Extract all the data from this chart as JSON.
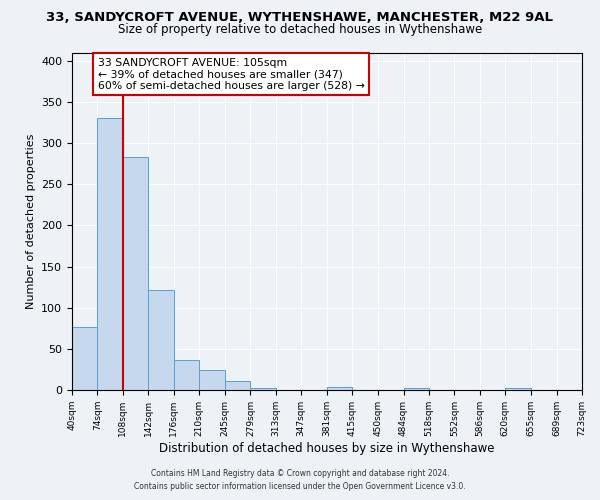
{
  "title": "33, SANDYCROFT AVENUE, WYTHENSHAWE, MANCHESTER, M22 9AL",
  "subtitle": "Size of property relative to detached houses in Wythenshawe",
  "xlabel": "Distribution of detached houses by size in Wythenshawe",
  "ylabel": "Number of detached properties",
  "bar_values": [
    77,
    330,
    283,
    122,
    37,
    24,
    11,
    3,
    0,
    0,
    4,
    0,
    0,
    2,
    0,
    0,
    0,
    3,
    0,
    0
  ],
  "bin_edges": [
    40,
    74,
    108,
    142,
    176,
    210,
    245,
    279,
    313,
    347,
    381,
    415,
    450,
    484,
    518,
    552,
    586,
    620,
    655,
    689,
    723
  ],
  "tick_labels": [
    "40sqm",
    "74sqm",
    "108sqm",
    "142sqm",
    "176sqm",
    "210sqm",
    "245sqm",
    "279sqm",
    "313sqm",
    "347sqm",
    "381sqm",
    "415sqm",
    "450sqm",
    "484sqm",
    "518sqm",
    "552sqm",
    "586sqm",
    "620sqm",
    "655sqm",
    "689sqm",
    "723sqm"
  ],
  "bar_color": "#c5d8ed",
  "bar_edge_color": "#5a9fd4",
  "vline_x": 108,
  "vline_color": "#cc0000",
  "ylim": [
    0,
    410
  ],
  "yticks": [
    0,
    50,
    100,
    150,
    200,
    250,
    300,
    350,
    400
  ],
  "annotation_line1": "33 SANDYCROFT AVENUE: 105sqm",
  "annotation_line2": "← 39% of detached houses are smaller (347)",
  "annotation_line3": "60% of semi-detached houses are larger (528) →",
  "annotation_box_color": "#ffffff",
  "annotation_box_edge_color": "#cc0000",
  "footer_line1": "Contains HM Land Registry data © Crown copyright and database right 2024.",
  "footer_line2": "Contains public sector information licensed under the Open Government Licence v3.0.",
  "background_color": "#edf2f7",
  "plot_background": "#edf2f7",
  "title_fontsize": 9.5,
  "subtitle_fontsize": 8.5
}
